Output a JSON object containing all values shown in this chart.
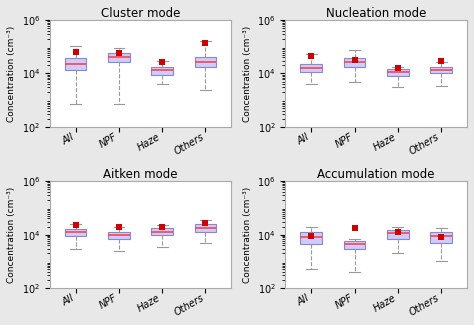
{
  "titles": [
    "Cluster mode",
    "Nucleation mode",
    "Aitken mode",
    "Accumulation mode"
  ],
  "categories": [
    "All",
    "NPF",
    "Haze",
    "Others"
  ],
  "ylabel": "Concentration (cm⁻³)",
  "ylim_log": [
    100,
    1000000
  ],
  "yticks": [
    100,
    10000,
    1000000
  ],
  "box_facecolor": "#ccccff",
  "box_edgecolor": "#8888cc",
  "median_color": "#ff4444",
  "whisker_color": "#999999",
  "cap_color": "#999999",
  "mean_color": "#cc0000",
  "fig_facecolor": "#e8e8e8",
  "ax_facecolor": "#ffffff",
  "panels": {
    "cluster": {
      "All": {
        "q1": 13000,
        "median": 22000,
        "q3": 38000,
        "whislo": 700,
        "whishi": 110000,
        "mean": 65000
      },
      "NPF": {
        "q1": 28000,
        "median": 42000,
        "q3": 60000,
        "whislo": 700,
        "whishi": 90000,
        "mean": 58000
      },
      "Haze": {
        "q1": 9000,
        "median": 13000,
        "q3": 18000,
        "whislo": 4000,
        "whishi": 30000,
        "mean": 28000
      },
      "Others": {
        "q1": 18000,
        "median": 28000,
        "q3": 42000,
        "whislo": 2500,
        "whishi": 160000,
        "mean": 140000
      }
    },
    "nucleation": {
      "All": {
        "q1": 11000,
        "median": 16000,
        "q3": 22000,
        "whislo": 4000,
        "whishi": 55000,
        "mean": 45000
      },
      "NPF": {
        "q1": 18000,
        "median": 26000,
        "q3": 38000,
        "whislo": 5000,
        "whishi": 75000,
        "mean": 32000
      },
      "Haze": {
        "q1": 8000,
        "median": 11000,
        "q3": 15000,
        "whislo": 3000,
        "whishi": 18000,
        "mean": 16000
      },
      "Others": {
        "q1": 10000,
        "median": 14000,
        "q3": 18000,
        "whislo": 3500,
        "whishi": 28000,
        "mean": 30000
      }
    },
    "aitken": {
      "All": {
        "q1": 9000,
        "median": 12000,
        "q3": 16000,
        "whislo": 3000,
        "whishi": 25000,
        "mean": 22000
      },
      "NPF": {
        "q1": 7000,
        "median": 9500,
        "q3": 13000,
        "whislo": 2500,
        "whishi": 20000,
        "mean": 19000
      },
      "Haze": {
        "q1": 9500,
        "median": 13000,
        "q3": 17000,
        "whislo": 3500,
        "whishi": 23000,
        "mean": 20000
      },
      "Others": {
        "q1": 13000,
        "median": 18000,
        "q3": 24000,
        "whislo": 5000,
        "whishi": 35000,
        "mean": 28000
      }
    },
    "accumulation": {
      "All": {
        "q1": 4500,
        "median": 8000,
        "q3": 13000,
        "whislo": 500,
        "whishi": 20000,
        "mean": 9000
      },
      "NPF": {
        "q1": 3000,
        "median": 4500,
        "q3": 6000,
        "whislo": 400,
        "whishi": 7000,
        "mean": 18000
      },
      "Haze": {
        "q1": 7000,
        "median": 11000,
        "q3": 15000,
        "whislo": 2000,
        "whishi": 20000,
        "mean": 13000
      },
      "Others": {
        "q1": 5000,
        "median": 8500,
        "q3": 12000,
        "whislo": 1000,
        "whishi": 18000,
        "mean": 8000
      }
    }
  }
}
